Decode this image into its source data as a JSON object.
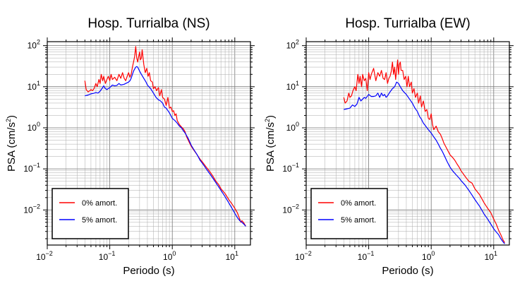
{
  "chart_data": [
    {
      "type": "line",
      "title": "Hosp. Turrialba (NS)",
      "xlabel": "Periodo (s)",
      "ylabel": "PSA (cm/s²)",
      "ylabel_parts": [
        "PSA (cm/s",
        "2",
        ")"
      ],
      "x_scale": "log",
      "y_scale": "log",
      "xlim": [
        0.01,
        17.8
      ],
      "ylim": [
        0.0014,
        125
      ],
      "x_ticks": [
        {
          "base": "10",
          "exp": "−2"
        },
        {
          "base": "10",
          "exp": "−1"
        },
        {
          "base": "10",
          "exp": "0"
        },
        {
          "base": "10",
          "exp": "1"
        }
      ],
      "y_ticks": [
        {
          "base": "10",
          "exp": "−2"
        },
        {
          "base": "10",
          "exp": "−1"
        },
        {
          "base": "10",
          "exp": "0"
        },
        {
          "base": "10",
          "exp": "1"
        },
        {
          "base": "10",
          "exp": "2"
        }
      ],
      "grid": true,
      "legend_position": "bottom-left",
      "series": [
        {
          "name": "0% amort.",
          "color": "#ff0000",
          "x": [
            0.04,
            0.042,
            0.045,
            0.048,
            0.05,
            0.053,
            0.056,
            0.06,
            0.063,
            0.067,
            0.07,
            0.073,
            0.077,
            0.08,
            0.085,
            0.09,
            0.095,
            0.1,
            0.105,
            0.11,
            0.12,
            0.13,
            0.14,
            0.15,
            0.16,
            0.17,
            0.18,
            0.19,
            0.2,
            0.21,
            0.22,
            0.23,
            0.24,
            0.25,
            0.26,
            0.27,
            0.28,
            0.29,
            0.3,
            0.31,
            0.32,
            0.33,
            0.35,
            0.37,
            0.39,
            0.41,
            0.43,
            0.45,
            0.48,
            0.5,
            0.53,
            0.56,
            0.6,
            0.63,
            0.67,
            0.7,
            0.75,
            0.8,
            0.85,
            0.9,
            0.95,
            1.0,
            1.05,
            1.1,
            1.15,
            1.2,
            1.3,
            1.4,
            1.5,
            1.6,
            1.7,
            1.8,
            1.9,
            2.0,
            2.2,
            2.4,
            2.6,
            2.8,
            3.0,
            3.5,
            4.0,
            4.5,
            5.0,
            5.5,
            6.0,
            7.0,
            8.0,
            9.0,
            10.0,
            11.0,
            12.0,
            12.5,
            13.0,
            14.0,
            15.0
          ],
          "y": [
            14.0,
            8.5,
            7.5,
            8.0,
            8.5,
            8.0,
            9.0,
            12.0,
            10.0,
            15.0,
            12.0,
            20.0,
            14.0,
            18.0,
            12.0,
            15.0,
            18.0,
            14.0,
            20.0,
            15.0,
            17.0,
            14.0,
            20.0,
            16.0,
            22.0,
            16.0,
            14.0,
            18.0,
            22.0,
            17.0,
            20.0,
            30.0,
            40.0,
            55.0,
            95.0,
            50.0,
            40.0,
            55.0,
            70.0,
            45.0,
            50.0,
            80.0,
            35.0,
            22.0,
            28.0,
            18.0,
            22.0,
            14.0,
            13.0,
            9.0,
            10.0,
            8.0,
            9.5,
            6.0,
            8.5,
            5.5,
            5.0,
            3.5,
            5.5,
            3.0,
            3.2,
            2.5,
            2.6,
            2.0,
            2.2,
            1.5,
            1.2,
            1.05,
            0.95,
            0.8,
            0.6,
            0.5,
            0.42,
            0.36,
            0.29,
            0.24,
            0.2,
            0.17,
            0.15,
            0.11,
            0.085,
            0.065,
            0.05,
            0.042,
            0.033,
            0.025,
            0.018,
            0.014,
            0.011,
            0.0085,
            0.006,
            0.005,
            0.0055,
            0.0048,
            0.004
          ]
        },
        {
          "name": "5% amort.",
          "color": "#0000ff",
          "x": [
            0.04,
            0.045,
            0.05,
            0.055,
            0.06,
            0.065,
            0.07,
            0.075,
            0.08,
            0.085,
            0.09,
            0.1,
            0.11,
            0.12,
            0.13,
            0.14,
            0.15,
            0.16,
            0.17,
            0.18,
            0.19,
            0.2,
            0.21,
            0.22,
            0.23,
            0.24,
            0.25,
            0.26,
            0.27,
            0.28,
            0.3,
            0.32,
            0.35,
            0.38,
            0.4,
            0.45,
            0.5,
            0.55,
            0.6,
            0.65,
            0.7,
            0.75,
            0.8,
            0.9,
            1.0,
            1.1,
            1.2,
            1.3,
            1.4,
            1.5,
            1.6,
            1.8,
            2.0,
            2.2,
            2.5,
            2.8,
            3.0,
            3.5,
            4.0,
            4.5,
            5.0,
            6.0,
            7.0,
            8.0,
            9.0,
            10.0,
            11.0,
            12.0,
            13.0,
            14.0,
            15.0
          ],
          "y": [
            6.0,
            6.3,
            6.7,
            6.9,
            7.2,
            7.0,
            7.8,
            9.0,
            10.5,
            9.0,
            8.5,
            9.5,
            11.0,
            10.5,
            10.8,
            12.0,
            11.0,
            11.2,
            11.5,
            12.0,
            12.5,
            13.0,
            14.0,
            16.0,
            20.0,
            24.0,
            27.0,
            30.0,
            31.0,
            30.0,
            24.0,
            20.0,
            16.0,
            13.0,
            11.0,
            9.0,
            7.0,
            5.5,
            4.8,
            4.5,
            4.0,
            3.2,
            3.0,
            2.3,
            1.7,
            1.5,
            1.3,
            1.1,
            1.0,
            0.85,
            0.75,
            0.55,
            0.38,
            0.3,
            0.22,
            0.16,
            0.14,
            0.1,
            0.075,
            0.058,
            0.046,
            0.03,
            0.021,
            0.015,
            0.011,
            0.0083,
            0.0065,
            0.0055,
            0.005,
            0.0045,
            0.004
          ]
        }
      ]
    },
    {
      "type": "line",
      "title": "Hosp. Turrialba (EW)",
      "xlabel": "Periodo (s)",
      "ylabel": "PSA (cm/s²)",
      "ylabel_parts": [
        "PSA (cm/s",
        "2",
        ")"
      ],
      "x_scale": "log",
      "y_scale": "log",
      "xlim": [
        0.01,
        17.8
      ],
      "ylim": [
        0.0014,
        125
      ],
      "x_ticks": [
        {
          "base": "10",
          "exp": "−2"
        },
        {
          "base": "10",
          "exp": "−1"
        },
        {
          "base": "10",
          "exp": "0"
        },
        {
          "base": "10",
          "exp": "1"
        }
      ],
      "y_ticks": [
        {
          "base": "10",
          "exp": "−2"
        },
        {
          "base": "10",
          "exp": "−1"
        },
        {
          "base": "10",
          "exp": "0"
        },
        {
          "base": "10",
          "exp": "1"
        },
        {
          "base": "10",
          "exp": "2"
        }
      ],
      "grid": true,
      "legend_position": "bottom-left",
      "series": [
        {
          "name": "0% amort.",
          "color": "#ff0000",
          "x": [
            0.04,
            0.042,
            0.045,
            0.048,
            0.05,
            0.053,
            0.056,
            0.06,
            0.063,
            0.067,
            0.07,
            0.073,
            0.077,
            0.08,
            0.085,
            0.09,
            0.095,
            0.1,
            0.105,
            0.11,
            0.12,
            0.13,
            0.14,
            0.15,
            0.16,
            0.17,
            0.18,
            0.19,
            0.2,
            0.21,
            0.22,
            0.23,
            0.24,
            0.25,
            0.26,
            0.27,
            0.28,
            0.29,
            0.3,
            0.31,
            0.32,
            0.33,
            0.35,
            0.37,
            0.39,
            0.41,
            0.43,
            0.45,
            0.48,
            0.5,
            0.53,
            0.56,
            0.6,
            0.63,
            0.67,
            0.7,
            0.75,
            0.8,
            0.85,
            0.9,
            0.95,
            1.0,
            1.05,
            1.1,
            1.2,
            1.3,
            1.4,
            1.5,
            1.6,
            1.8,
            2.0,
            2.2,
            2.4,
            2.6,
            2.8,
            3.0,
            3.5,
            4.0,
            4.5,
            5.0,
            6.0,
            7.0,
            8.0,
            9.0,
            10.0,
            11.0,
            12.0,
            13.0,
            14.0,
            15.0
          ],
          "y": [
            5.5,
            4.0,
            4.5,
            7.0,
            5.5,
            6.0,
            8.0,
            10.0,
            8.0,
            20.0,
            12.0,
            18.0,
            10.0,
            20.0,
            14.0,
            16.0,
            8.0,
            22.0,
            15.0,
            20.0,
            28.0,
            14.0,
            22.0,
            18.0,
            25.0,
            16.0,
            15.0,
            22.0,
            12.0,
            16.0,
            18.0,
            24.0,
            40.0,
            20.0,
            30.0,
            15.0,
            25.0,
            45.0,
            20.0,
            35.0,
            40.0,
            25.0,
            25.0,
            15.0,
            18.0,
            10.0,
            18.0,
            10.0,
            13.0,
            7.0,
            9.0,
            5.5,
            7.0,
            4.0,
            6.0,
            3.2,
            4.5,
            2.5,
            2.8,
            1.7,
            1.6,
            2.2,
            1.2,
            0.9,
            1.1,
            0.8,
            0.7,
            0.55,
            0.42,
            0.3,
            0.22,
            0.19,
            0.16,
            0.13,
            0.11,
            0.09,
            0.065,
            0.05,
            0.045,
            0.033,
            0.023,
            0.015,
            0.011,
            0.0085,
            0.006,
            0.0045,
            0.0032,
            0.0025,
            0.0019,
            0.0016
          ]
        },
        {
          "name": "5% amort.",
          "color": "#0000ff",
          "x": [
            0.04,
            0.045,
            0.05,
            0.055,
            0.06,
            0.065,
            0.07,
            0.075,
            0.08,
            0.085,
            0.09,
            0.1,
            0.11,
            0.12,
            0.13,
            0.14,
            0.15,
            0.16,
            0.17,
            0.18,
            0.19,
            0.2,
            0.22,
            0.24,
            0.26,
            0.28,
            0.3,
            0.32,
            0.35,
            0.38,
            0.4,
            0.45,
            0.5,
            0.55,
            0.6,
            0.65,
            0.7,
            0.75,
            0.8,
            0.9,
            1.0,
            1.1,
            1.2,
            1.3,
            1.4,
            1.5,
            1.6,
            1.8,
            2.0,
            2.2,
            2.5,
            2.8,
            3.0,
            3.5,
            4.0,
            4.5,
            5.0,
            6.0,
            7.0,
            8.0,
            9.0,
            10.0,
            11.0,
            12.0,
            13.0,
            14.0,
            15.0
          ],
          "y": [
            2.8,
            2.9,
            3.0,
            3.6,
            3.3,
            3.8,
            5.5,
            4.5,
            5.0,
            5.5,
            5.2,
            6.5,
            5.8,
            5.8,
            6.0,
            7.0,
            5.5,
            7.0,
            6.0,
            6.5,
            5.5,
            6.0,
            7.5,
            9.0,
            10.0,
            13.0,
            12.0,
            10.0,
            8.0,
            7.0,
            6.5,
            5.0,
            4.0,
            3.0,
            2.5,
            1.9,
            1.6,
            1.3,
            1.15,
            0.9,
            0.75,
            0.6,
            0.5,
            0.4,
            0.32,
            0.27,
            0.22,
            0.15,
            0.11,
            0.09,
            0.072,
            0.06,
            0.052,
            0.04,
            0.03,
            0.023,
            0.018,
            0.012,
            0.008,
            0.006,
            0.0045,
            0.0035,
            0.0029,
            0.0025,
            0.002,
            0.0017,
            0.0015
          ]
        }
      ]
    }
  ]
}
